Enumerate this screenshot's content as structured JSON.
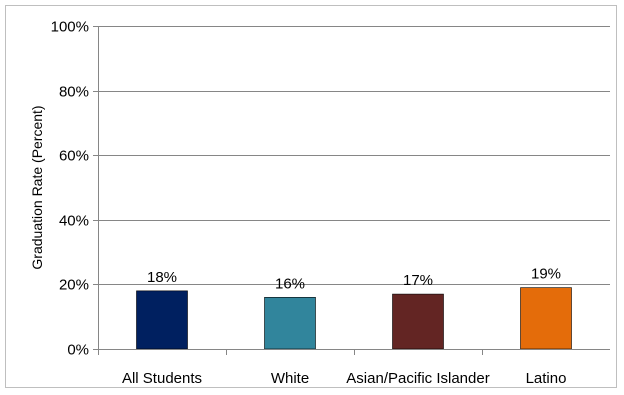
{
  "chart_data": {
    "type": "bar",
    "title": "",
    "xlabel": "",
    "ylabel": "Graduation Rate (Percent)",
    "categories": [
      "All Students",
      "White",
      "Asian/Pacific Islander",
      "Latino"
    ],
    "values": [
      18,
      16,
      17,
      19
    ],
    "value_labels": [
      "18%",
      "16%",
      "17%",
      "19%"
    ],
    "colors": [
      "#002060",
      "#31859c",
      "#632523",
      "#e46c0a"
    ],
    "ylim": [
      0,
      100
    ],
    "yticks": [
      0,
      20,
      40,
      60,
      80,
      100
    ],
    "ytick_labels": [
      "0%",
      "20%",
      "40%",
      "60%",
      "80%",
      "100%"
    ],
    "grid": true,
    "legend": "none"
  }
}
